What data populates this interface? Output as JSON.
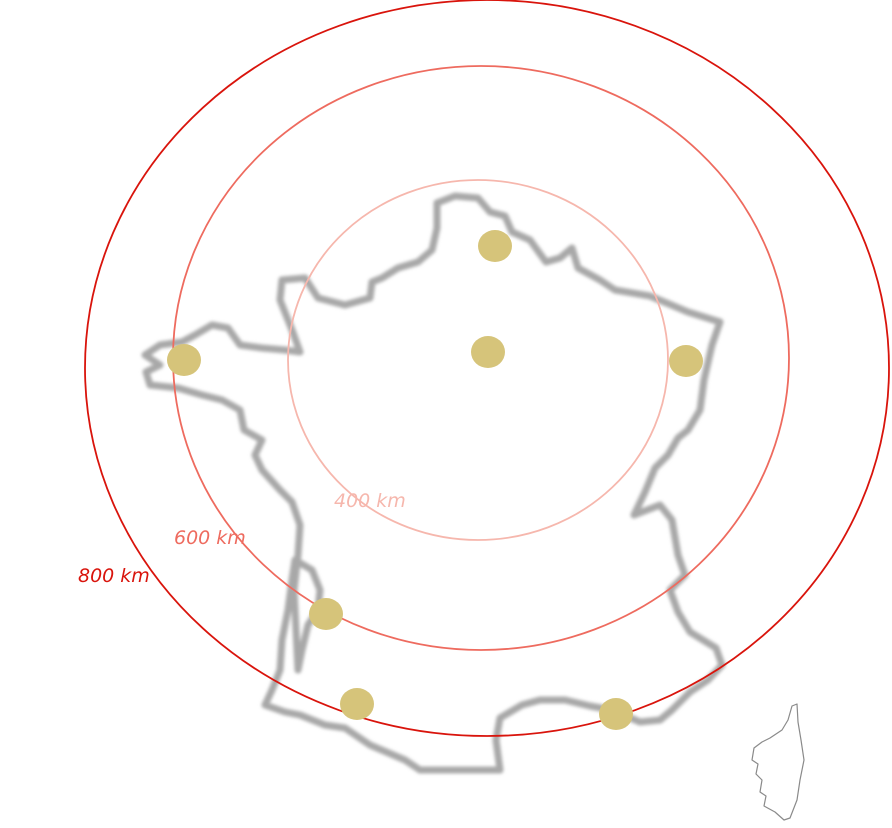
{
  "map": {
    "rings": [
      {
        "label": "400 km",
        "color": "#f6b7ad"
      },
      {
        "label": "600 km",
        "color": "#ee6b5f"
      },
      {
        "label": "800 km",
        "color": "#d9140c"
      }
    ],
    "city_marker_color": "#d6c47a",
    "country_outline_color": "#a8a8a8",
    "island_outline_color": "#8a8a8a",
    "city_count": 7
  }
}
